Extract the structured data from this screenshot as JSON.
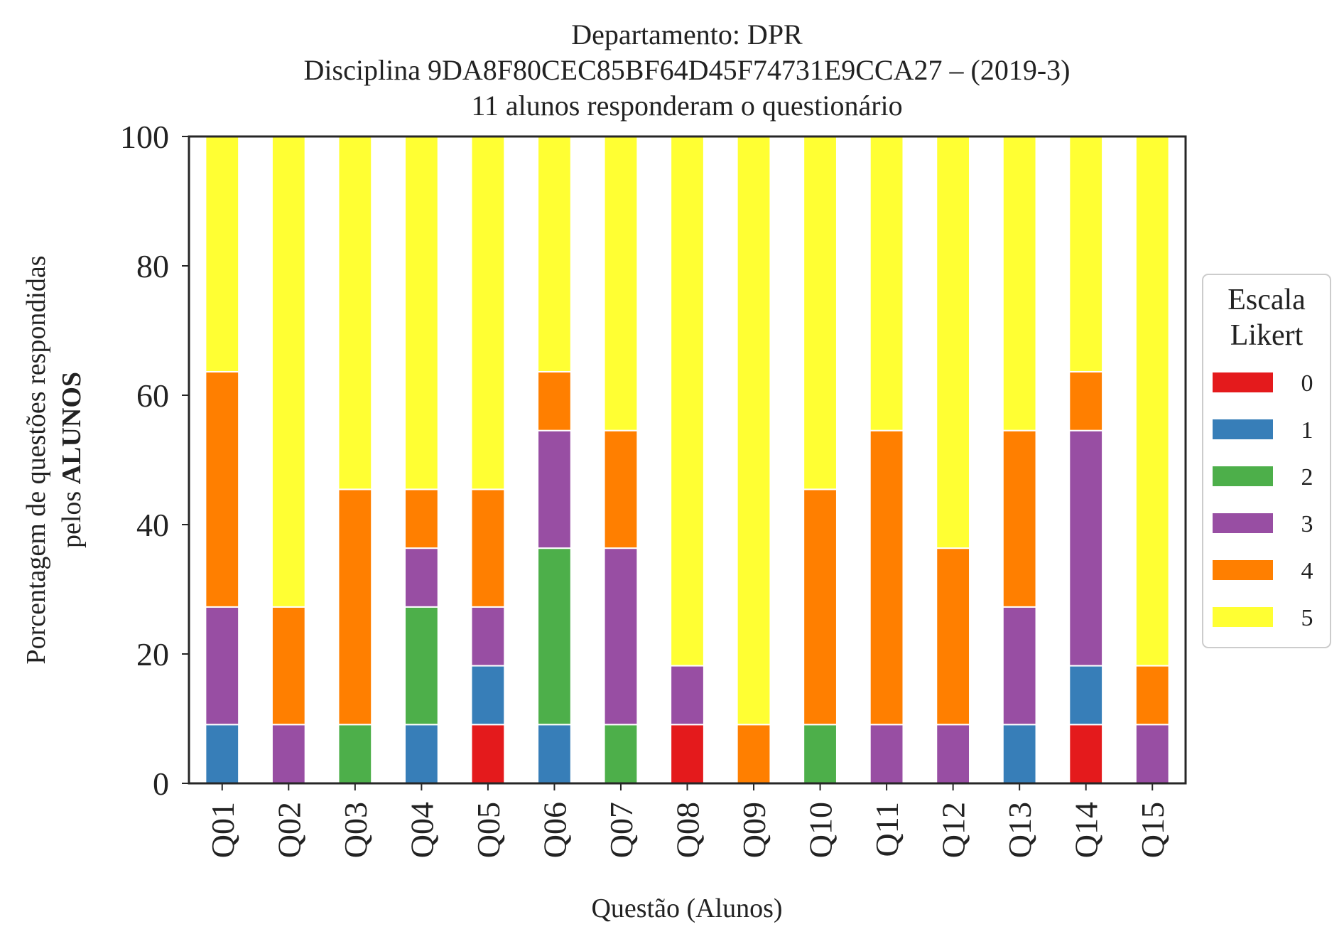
{
  "chart_data": {
    "type": "bar",
    "stacked": true,
    "title_lines": [
      "Departamento: DPR",
      "Disciplina 9DA8F80CEC85BF64D45F74731E9CCA27 – (2019-3)",
      "11 alunos responderam o questionário"
    ],
    "xlabel": "Questão (Alunos)",
    "ylabel_line1": "Porcentagem de questões respondidas",
    "ylabel_line2_prefix": "pelos ",
    "ylabel_line2_bold": "ALUNOS",
    "ylim": [
      0,
      100
    ],
    "yticks": [
      0,
      20,
      40,
      60,
      80,
      100
    ],
    "grid": false,
    "legend_position": "right",
    "legend_title_lines": [
      "Escala",
      "Likert"
    ],
    "categories": [
      "Q01",
      "Q02",
      "Q03",
      "Q04",
      "Q05",
      "Q06",
      "Q07",
      "Q08",
      "Q09",
      "Q10",
      "Q11",
      "Q12",
      "Q13",
      "Q14",
      "Q15"
    ],
    "series": [
      {
        "name": "0",
        "color": "#e41a1c",
        "values": [
          0,
          0,
          0,
          0,
          9.09,
          0,
          0,
          9.09,
          0,
          0,
          0,
          0,
          0,
          9.09,
          0
        ]
      },
      {
        "name": "1",
        "color": "#377eb8",
        "values": [
          9.09,
          0,
          0,
          9.09,
          9.09,
          9.09,
          0,
          0,
          0,
          0,
          0,
          0,
          9.09,
          9.09,
          0
        ]
      },
      {
        "name": "2",
        "color": "#4daf4a",
        "values": [
          0,
          0,
          9.09,
          18.18,
          0,
          27.27,
          9.09,
          0,
          0,
          9.09,
          0,
          0,
          0,
          0,
          0
        ]
      },
      {
        "name": "3",
        "color": "#984ea3",
        "values": [
          18.18,
          9.09,
          0,
          9.09,
          9.09,
          18.18,
          27.27,
          9.09,
          0,
          0,
          9.09,
          9.09,
          18.18,
          36.36,
          9.09
        ]
      },
      {
        "name": "4",
        "color": "#ff7f00",
        "values": [
          36.36,
          18.18,
          36.36,
          9.09,
          18.18,
          9.09,
          18.18,
          0,
          9.09,
          36.36,
          45.45,
          27.27,
          27.27,
          9.09,
          9.09
        ]
      },
      {
        "name": "5",
        "color": "#ffff33",
        "values": [
          36.36,
          72.73,
          54.55,
          54.55,
          54.55,
          36.36,
          45.45,
          81.82,
          90.91,
          54.55,
          45.45,
          63.64,
          45.45,
          36.36,
          81.82
        ]
      }
    ]
  }
}
